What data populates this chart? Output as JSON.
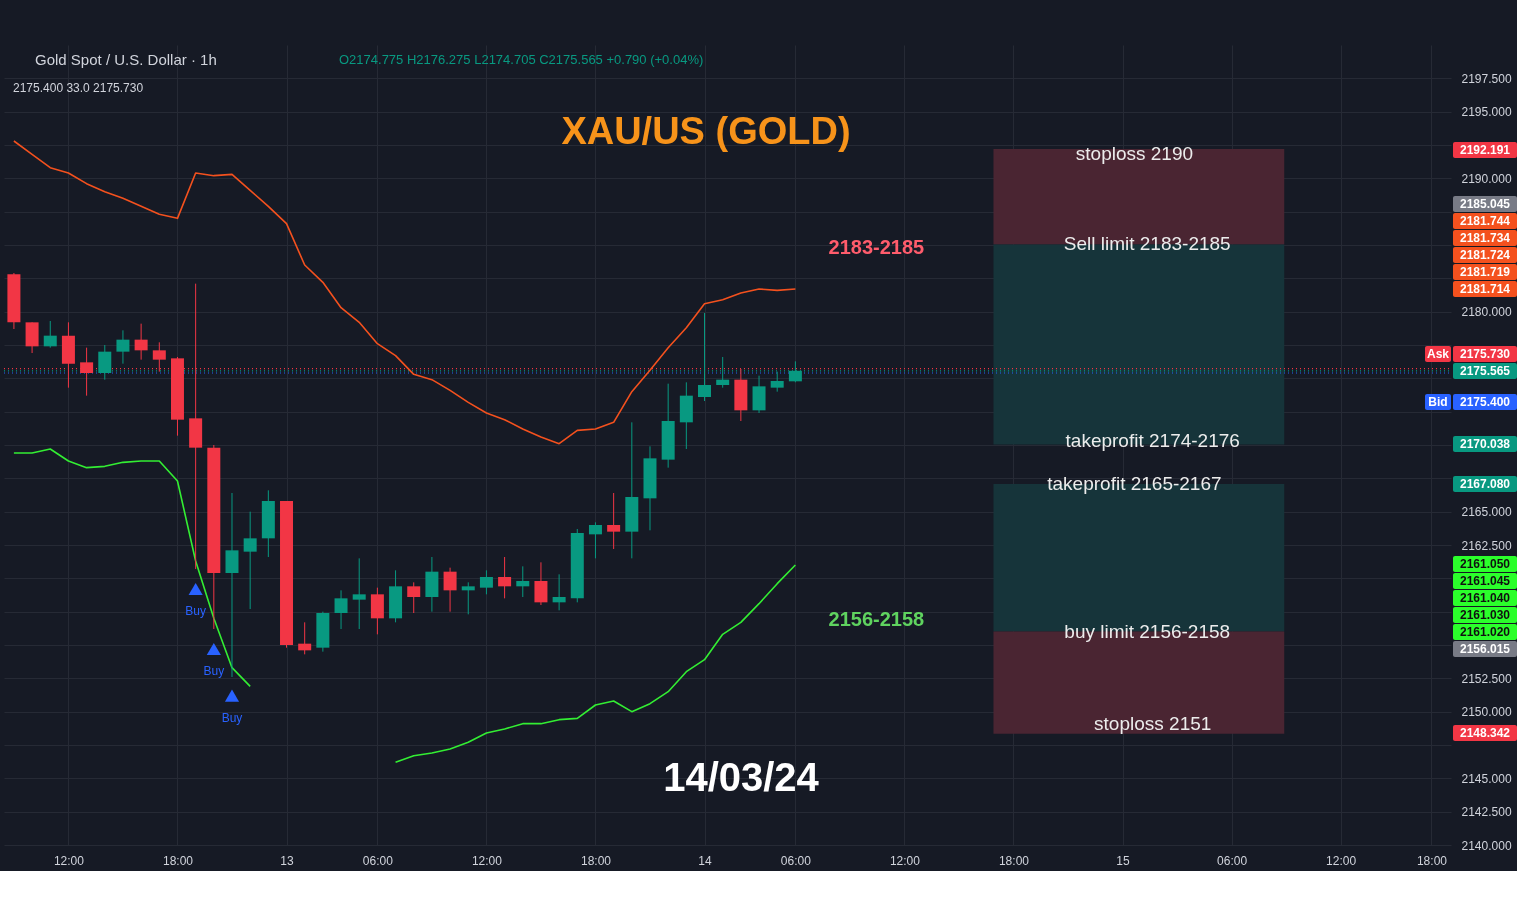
{
  "chart_data": {
    "type": "candlestick",
    "title": "XAU/US (GOLD)",
    "subtitle": "Gold Spot / U.S. Dollar · 1h",
    "categories": [
      null,
      null,
      null,
      "12:00",
      null,
      null,
      null,
      null,
      null,
      "18:00",
      null,
      null,
      null,
      null,
      null,
      "13",
      null,
      null,
      null,
      null,
      "06:00",
      null,
      null,
      null,
      null,
      null,
      "12:00",
      null,
      null,
      null,
      null,
      null,
      "18:00",
      null,
      null,
      null,
      null,
      null,
      "14",
      null,
      null,
      null,
      null,
      "06:00",
      null,
      null,
      null,
      null,
      null,
      "12:00",
      null,
      null,
      null,
      null,
      null,
      "18:00",
      null,
      null,
      null,
      null,
      null,
      "15",
      null,
      null,
      null,
      null,
      null,
      "06:00",
      null,
      null,
      null,
      null,
      null,
      "12:00",
      null,
      null,
      null,
      null,
      "18:00"
    ],
    "ohlc": [
      [
        2182.8,
        2182.9,
        2178.7,
        2179.2
      ],
      [
        2179.2,
        2179.2,
        2176.9,
        2177.4
      ],
      [
        2177.4,
        2179.3,
        2177.3,
        2178.2
      ],
      [
        2178.2,
        2179.2,
        2174.3,
        2176.1
      ],
      [
        2176.2,
        2177.3,
        2173.7,
        2175.4
      ],
      [
        2175.4,
        2177.5,
        2174.9,
        2177.0
      ],
      [
        2177.0,
        2178.6,
        2176.1,
        2177.9
      ],
      [
        2177.9,
        2179.1,
        2176.4,
        2177.1
      ],
      [
        2177.1,
        2177.7,
        2175.5,
        2176.4
      ],
      [
        2176.5,
        2176.6,
        2170.7,
        2171.9
      ],
      [
        2172.0,
        2182.1,
        2160.7,
        2169.8
      ],
      [
        2169.8,
        2170.0,
        2156.2,
        2160.4
      ],
      [
        2160.4,
        2166.4,
        2152.6,
        2162.1
      ],
      [
        2162.0,
        2165.0,
        2157.7,
        2163.0
      ],
      [
        2163.0,
        2166.6,
        2161.6,
        2165.8
      ],
      [
        2165.8,
        2165.8,
        2154.8,
        2155.0
      ],
      [
        2155.1,
        2156.7,
        2154.3,
        2154.6
      ],
      [
        2154.8,
        2157.5,
        2154.5,
        2157.4
      ],
      [
        2157.4,
        2159.1,
        2156.2,
        2158.5
      ],
      [
        2158.4,
        2161.5,
        2156.2,
        2158.8
      ],
      [
        2158.8,
        2159.3,
        2155.8,
        2157.0
      ],
      [
        2157.0,
        2160.6,
        2156.7,
        2159.4
      ],
      [
        2159.4,
        2159.7,
        2157.4,
        2158.6
      ],
      [
        2158.6,
        2161.6,
        2157.5,
        2160.5
      ],
      [
        2160.5,
        2160.8,
        2157.5,
        2159.1
      ],
      [
        2159.1,
        2159.7,
        2157.3,
        2159.4
      ],
      [
        2159.3,
        2160.6,
        2158.8,
        2160.1
      ],
      [
        2160.1,
        2161.6,
        2158.5,
        2159.4
      ],
      [
        2159.4,
        2160.9,
        2158.6,
        2159.8
      ],
      [
        2159.8,
        2161.2,
        2158.0,
        2158.2
      ],
      [
        2158.2,
        2160.3,
        2157.6,
        2158.6
      ],
      [
        2158.5,
        2163.7,
        2158.2,
        2163.4
      ],
      [
        2163.3,
        2164.2,
        2161.5,
        2164.0
      ],
      [
        2164.0,
        2166.4,
        2162.2,
        2163.5
      ],
      [
        2163.5,
        2171.7,
        2161.5,
        2166.1
      ],
      [
        2166.0,
        2169.9,
        2163.6,
        2169.0
      ],
      [
        2168.9,
        2174.6,
        2168.3,
        2171.8
      ],
      [
        2171.7,
        2174.7,
        2169.7,
        2173.7
      ],
      [
        2173.6,
        2179.9,
        2173.3,
        2174.5
      ],
      [
        2174.5,
        2176.6,
        2174.3,
        2174.9
      ],
      [
        2174.9,
        2175.7,
        2171.8,
        2172.6
      ],
      [
        2172.6,
        2175.2,
        2172.4,
        2174.4
      ],
      [
        2174.3,
        2175.5,
        2174.0,
        2174.8
      ],
      [
        2174.775,
        2176.275,
        2174.705,
        2175.565
      ],
      null,
      null,
      null,
      null,
      null,
      null,
      null,
      null,
      null,
      null,
      null,
      null,
      null,
      null,
      null,
      null,
      null,
      null,
      null,
      null,
      null,
      null,
      null,
      null,
      null,
      null,
      null,
      null,
      null,
      null,
      null,
      null,
      null,
      null,
      null
    ],
    "series": [
      {
        "type": "line",
        "color": "#f4511e",
        "values": [
          2192.8,
          2191.8,
          2190.8,
          2190.4,
          2189.6,
          2189.0,
          2188.5,
          2187.9,
          2187.3,
          2187.0,
          2190.4,
          2190.2,
          2190.3,
          2189.1,
          2187.9,
          2186.6,
          2183.5,
          2182.2,
          2180.3,
          2179.2,
          2177.6,
          2176.7,
          2175.3,
          2174.9,
          2174.1,
          2173.2,
          2172.4,
          2171.9,
          2171.2,
          2170.6,
          2170.1,
          2171.1,
          2171.2,
          2171.7,
          2174.0,
          2175.6,
          2177.3,
          2178.8,
          2180.6,
          2180.9,
          2181.4,
          2181.7,
          2181.6,
          2181.7,
          null,
          null,
          null,
          null,
          null,
          null,
          null,
          null,
          null,
          null,
          null,
          null,
          null,
          null,
          null,
          null,
          null,
          null,
          null,
          null,
          null,
          null,
          null,
          null,
          null,
          null,
          null,
          null,
          null,
          null,
          null,
          null,
          null,
          null,
          null
        ]
      },
      {
        "type": "line",
        "color": "#33ee33",
        "values": [
          2169.4,
          2169.4,
          2169.7,
          2168.8,
          2168.3,
          2168.4,
          2168.7,
          2168.8,
          2168.8,
          2167.3,
          2161.3,
          2157.0,
          2153.3,
          2151.9,
          null,
          null,
          null,
          null,
          null,
          null,
          null,
          2146.2,
          2146.7,
          2146.9,
          2147.2,
          2147.7,
          2148.4,
          2148.7,
          2149.1,
          2149.1,
          2149.4,
          2149.5,
          2150.5,
          2150.8,
          2150.0,
          2150.6,
          2151.5,
          2153.0,
          2153.9,
          2155.8,
          2156.7,
          2158.1,
          2159.6,
          2161.0,
          null,
          null,
          null,
          null,
          null,
          null,
          null,
          null,
          null,
          null,
          null,
          null,
          null,
          null,
          null,
          null,
          null,
          null,
          null,
          null,
          null,
          null,
          null,
          null,
          null,
          null,
          null,
          null,
          null,
          null,
          null,
          null,
          null,
          null,
          null
        ]
      },
      {
        "type": "scatter",
        "color": "#2962ff",
        "marker": "triangle",
        "values": [
          null,
          null,
          null,
          null,
          null,
          null,
          null,
          null,
          null,
          null,
          2159.2,
          2154.7,
          2151.2,
          null,
          null,
          null,
          null,
          null,
          null,
          null,
          null,
          null,
          null,
          null,
          null,
          null,
          null,
          null,
          null,
          null,
          null,
          null,
          null,
          null,
          null,
          null,
          null,
          null,
          null,
          null,
          null,
          null,
          null,
          null,
          null,
          null,
          null,
          null,
          null,
          null,
          null,
          null,
          null,
          null,
          null,
          null,
          null,
          null,
          null,
          null,
          null,
          null,
          null,
          null,
          null,
          null,
          null,
          null,
          null,
          null,
          null,
          null,
          null,
          null,
          null,
          null,
          null,
          null,
          null
        ],
        "value_labels": [
          null,
          null,
          null,
          null,
          null,
          null,
          null,
          null,
          null,
          null,
          "Buy",
          "Buy",
          "Buy",
          null,
          null,
          null,
          null,
          null,
          null,
          null,
          null,
          null,
          null,
          null,
          null,
          null,
          null,
          null,
          null,
          null,
          null,
          null,
          null,
          null,
          null,
          null,
          null,
          null,
          null,
          null,
          null,
          null,
          null,
          null,
          null,
          null,
          null,
          null,
          null,
          null,
          null,
          null,
          null,
          null,
          null,
          null,
          null,
          null,
          null,
          null,
          null,
          null,
          null,
          null,
          null,
          null,
          null,
          null,
          null,
          null,
          null,
          null,
          null,
          null,
          null,
          null,
          null,
          null,
          null
        ]
      }
    ],
    "ylim": [
      2140,
      2200
    ],
    "yticks": [
      {
        "value": 2140,
        "label": "2140.000"
      },
      {
        "value": 2142.5,
        "label": "2142.500"
      },
      {
        "value": 2145,
        "label": "2145.000"
      },
      {
        "value": 2147.5,
        "label": null
      },
      {
        "value": 2150,
        "label": "2150.000"
      },
      {
        "value": 2152.5,
        "label": "2152.500"
      },
      {
        "value": 2155,
        "label": null
      },
      {
        "value": 2157.5,
        "label": null
      },
      {
        "value": 2160,
        "label": null
      },
      {
        "value": 2162.5,
        "label": "2162.500"
      },
      {
        "value": 2165,
        "label": "2165.000"
      },
      {
        "value": 2167.5,
        "label": null
      },
      {
        "value": 2170,
        "label": null
      },
      {
        "value": 2172.5,
        "label": null
      },
      {
        "value": 2175,
        "label": null
      },
      {
        "value": 2177.5,
        "label": null
      },
      {
        "value": 2180,
        "label": "2180.000"
      },
      {
        "value": 2182.5,
        "label": null
      },
      {
        "value": 2185,
        "label": null
      },
      {
        "value": 2187.5,
        "label": null
      },
      {
        "value": 2190,
        "label": "2190.000"
      },
      {
        "value": 2192.5,
        "label": null
      },
      {
        "value": 2195,
        "label": "2195.000"
      },
      {
        "value": 2197.5,
        "label": "2197.500"
      }
    ],
    "grid": true,
    "bands": [
      {
        "axis": "y",
        "from": 2185.045,
        "to": 2192.191,
        "color": "#4a2532"
      },
      {
        "axis": "y",
        "from": 2170.038,
        "to": 2185.045,
        "color": "#16343a"
      },
      {
        "axis": "y",
        "from": 2156.015,
        "to": 2167.08,
        "color": "#16343a"
      },
      {
        "axis": "y",
        "from": 2148.342,
        "to": 2156.015,
        "color": "#4a2532"
      }
    ],
    "ref_lines": [
      {
        "axis": "y",
        "value": 2175.73,
        "label": "Ask",
        "color": "#f23645",
        "line_style": "dotted"
      },
      {
        "axis": "y",
        "value": 2175.565,
        "label": null,
        "color": "#089981",
        "line_style": "dotted"
      },
      {
        "axis": "y",
        "value": 2175.4,
        "label": "Bid",
        "color": "#2962ff",
        "line_style": "dotted"
      }
    ],
    "annotations": [
      "O2174.775 H2176.275 L2174.705 C2175.565 +0.790 (+0.04%)",
      "2175.400  33.0  2175.730",
      "2183-2185",
      "2156-2158",
      "14/03/24",
      "stoploss 2190",
      "Sell limit 2183-2185",
      "takeprofit 2174-2176",
      "takeprofit 2165-2167",
      "buy limit 2156-2158",
      "stoploss 2151",
      "2192.191",
      "2185.045",
      "2181.744",
      "2181.734",
      "2181.724",
      "2181.719",
      "2181.714",
      "2175.730",
      "2175.565",
      "2175.400",
      "2170.038",
      "2167.080",
      "2161.050",
      "2161.045",
      "2161.040",
      "2161.030",
      "2161.020",
      "2156.015",
      "2148.342"
    ]
  }
}
